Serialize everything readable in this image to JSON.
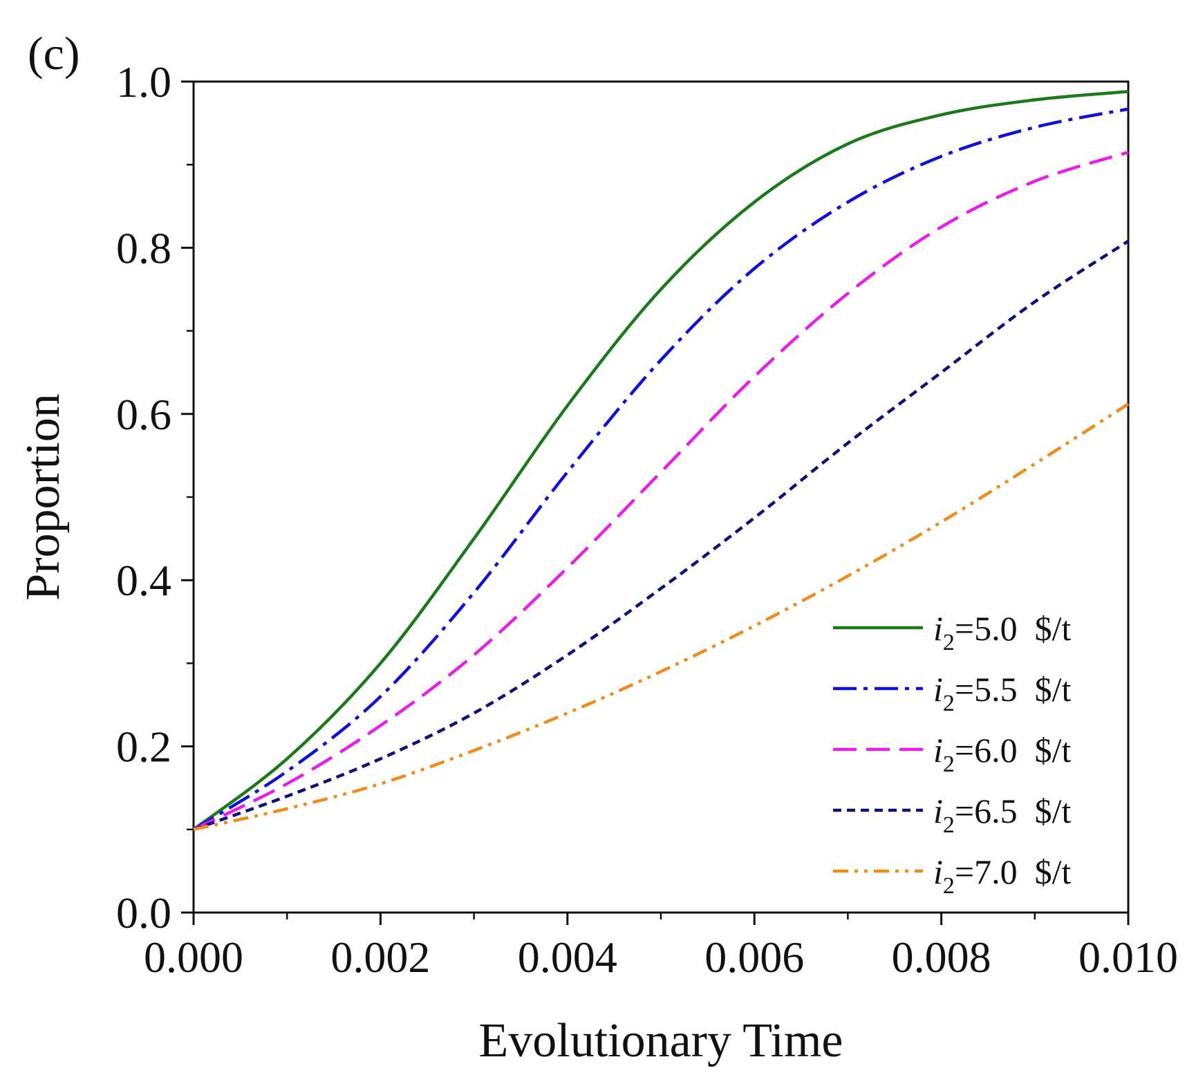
{
  "chart_data": {
    "type": "line",
    "panel_label": "(c)",
    "xlabel": "Evolutionary Time",
    "ylabel": "Proportion",
    "xlim": [
      0,
      0.01
    ],
    "ylim": [
      0,
      1.0
    ],
    "x_ticks": [
      0.0,
      0.002,
      0.004,
      0.006,
      0.008,
      0.01
    ],
    "x_tick_labels": [
      "0.000",
      "0.002",
      "0.004",
      "0.006",
      "0.008",
      "0.010"
    ],
    "y_ticks": [
      0.0,
      0.2,
      0.4,
      0.6,
      0.8,
      1.0
    ],
    "y_tick_labels": [
      "0.0",
      "0.2",
      "0.4",
      "0.6",
      "0.8",
      "1.0"
    ],
    "grid": false,
    "legend_position": "bottom-right",
    "x": [
      0.0,
      0.001,
      0.002,
      0.003,
      0.004,
      0.005,
      0.006,
      0.007,
      0.008,
      0.009,
      0.01
    ],
    "series": [
      {
        "name": "i2=5.0 $/t",
        "legend_var": "i",
        "legend_sub": "2",
        "legend_text": "=5.0  $/t",
        "color": "#1a7a1a",
        "dash": "solid",
        "values": [
          0.1,
          0.185,
          0.3,
          0.45,
          0.61,
          0.75,
          0.855,
          0.925,
          0.96,
          0.978,
          0.988
        ]
      },
      {
        "name": "i2=5.5 $/t",
        "legend_var": "i",
        "legend_sub": "2",
        "legend_text": "=5.5  $/t",
        "color": "#1010d8",
        "dash": "dashdot",
        "values": [
          0.1,
          0.17,
          0.26,
          0.385,
          0.53,
          0.665,
          0.775,
          0.855,
          0.91,
          0.945,
          0.967
        ]
      },
      {
        "name": "i2=6.0 $/t",
        "legend_var": "i",
        "legend_sub": "2",
        "legend_text": "=6.0  $/t",
        "color": "#e81ee8",
        "dash": "dash",
        "values": [
          0.1,
          0.155,
          0.225,
          0.31,
          0.415,
          0.53,
          0.645,
          0.745,
          0.825,
          0.88,
          0.915
        ]
      },
      {
        "name": "i2=6.5 $/t",
        "legend_var": "i",
        "legend_sub": "2",
        "legend_text": "=6.5  $/t",
        "color": "#10107a",
        "dash": "shortdash",
        "values": [
          0.1,
          0.14,
          0.185,
          0.24,
          0.31,
          0.39,
          0.475,
          0.565,
          0.65,
          0.735,
          0.808
        ]
      },
      {
        "name": "i2=7.0 $/t",
        "legend_var": "i",
        "legend_sub": "2",
        "legend_text": "=7.0  $/t",
        "color": "#f08c1e",
        "dash": "dashdotdot",
        "values": [
          0.1,
          0.125,
          0.155,
          0.195,
          0.24,
          0.29,
          0.345,
          0.405,
          0.47,
          0.54,
          0.612
        ]
      }
    ]
  }
}
